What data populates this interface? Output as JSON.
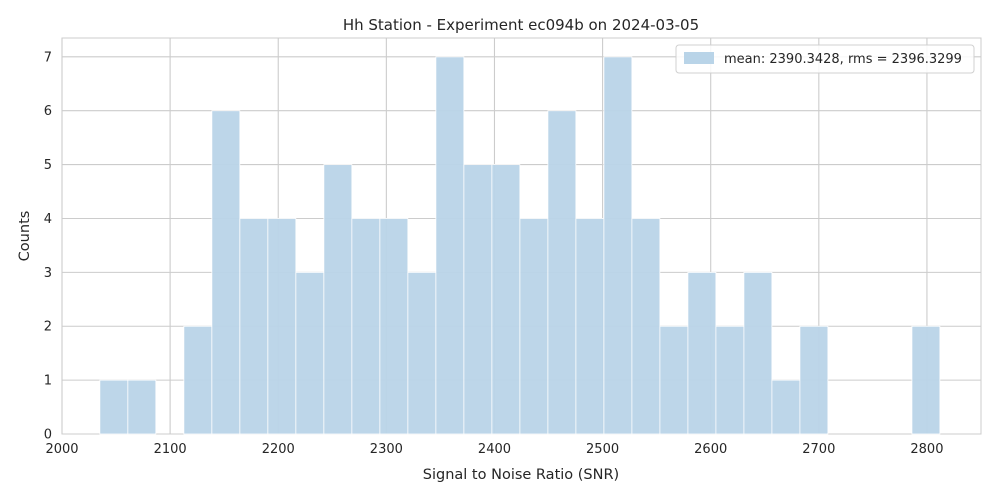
{
  "chart_data": {
    "type": "bar",
    "title": "Hh Station - Experiment ec094b on 2024-03-05",
    "xlabel": "Signal to Noise Ratio (SNR)",
    "ylabel": "Counts",
    "xlim": [
      2000,
      2850
    ],
    "ylim": [
      0,
      7.35
    ],
    "xticks": [
      2000,
      2100,
      2200,
      2300,
      2400,
      2500,
      2600,
      2700,
      2800
    ],
    "yticks": [
      0,
      1,
      2,
      3,
      4,
      5,
      6,
      7
    ],
    "grid": true,
    "legend_position": "top-right",
    "bar_color": "#b9d4e8",
    "bin_start": 2035,
    "bin_width": 25.9,
    "counts": [
      1,
      1,
      0,
      2,
      6,
      4,
      4,
      3,
      5,
      4,
      4,
      3,
      7,
      5,
      5,
      4,
      6,
      4,
      7,
      4,
      2,
      3,
      2,
      3,
      1,
      2,
      0,
      0,
      0,
      2
    ],
    "series": [
      {
        "name": "mean: 2390.3428, rms = 2396.3299"
      }
    ]
  }
}
